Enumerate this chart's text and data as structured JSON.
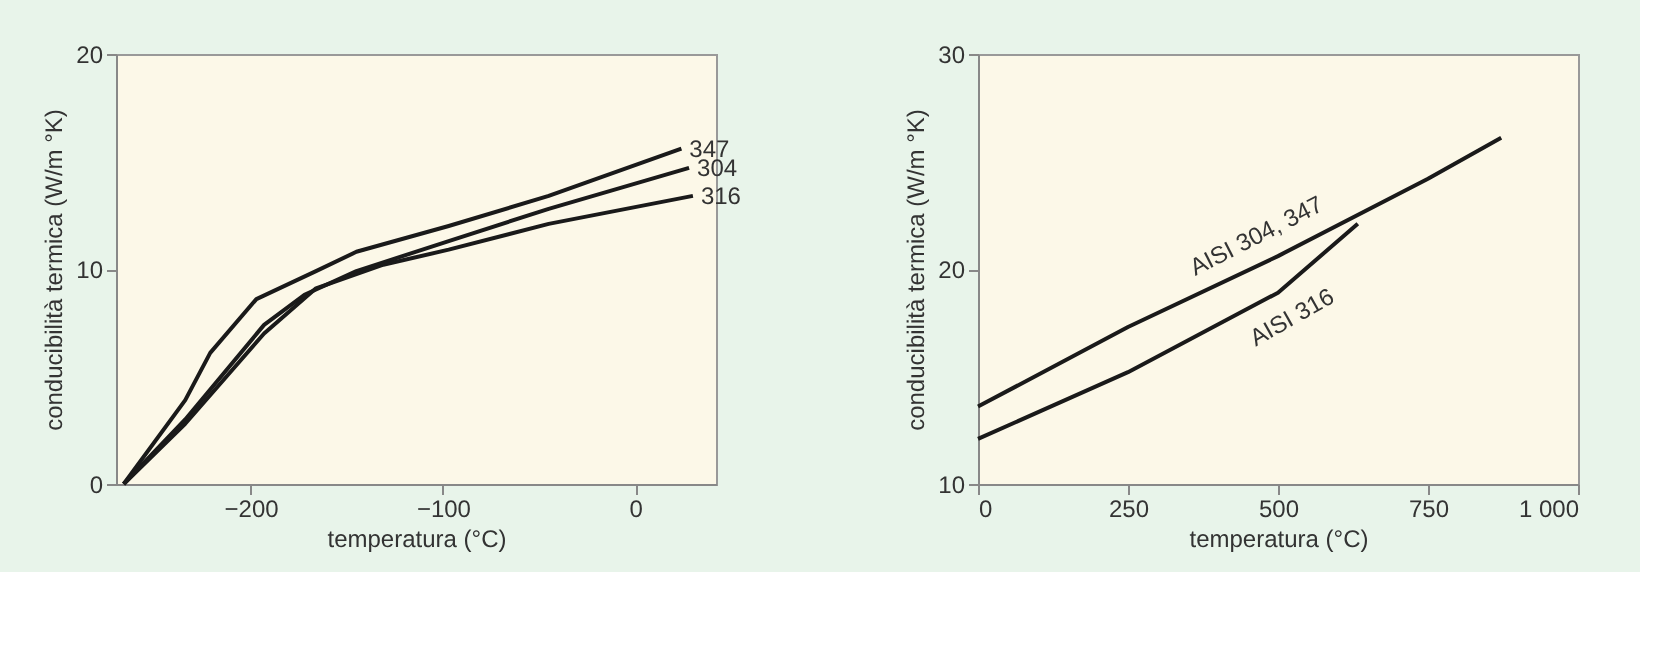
{
  "chart_data": [
    {
      "type": "line",
      "xlabel": "temperatura (°C)",
      "ylabel": "conducibilità termica (W/m °K)",
      "xlim": [
        -270,
        42
      ],
      "ylim": [
        0,
        20
      ],
      "xticks": [
        -200,
        -100,
        0
      ],
      "yticks": [
        0,
        10,
        20
      ],
      "grid": false,
      "line_style": "solid",
      "marker": "none",
      "series": [
        {
          "name": "347",
          "color": "#1a1a1a",
          "x": [
            -266,
            -234,
            -221,
            -197,
            -166,
            -145,
            -97,
            -45,
            24
          ],
          "values": [
            0,
            3.9,
            6.1,
            8.6,
            9.9,
            10.8,
            12.0,
            13.4,
            15.6
          ]
        },
        {
          "name": "304",
          "color": "#1a1a1a",
          "x": [
            -266,
            -234,
            -193,
            -172,
            -145,
            -97,
            -45,
            28
          ],
          "values": [
            0,
            3.0,
            7.4,
            8.8,
            9.9,
            11.3,
            12.8,
            14.7
          ]
        },
        {
          "name": "316",
          "color": "#1a1a1a",
          "x": [
            -266,
            -234,
            -193,
            -166,
            -131,
            -97,
            -45,
            30
          ],
          "values": [
            0,
            2.8,
            7.0,
            9.1,
            10.2,
            10.9,
            12.1,
            13.4
          ]
        }
      ]
    },
    {
      "type": "line",
      "xlabel": "temperatura (°C)",
      "ylabel": "conducibilità termica (W/m °K)",
      "xlim": [
        0,
        1000
      ],
      "ylim": [
        10,
        30
      ],
      "xticks": [
        0,
        250,
        500,
        750,
        {
          "value": 1000,
          "label": "1 000"
        }
      ],
      "yticks": [
        10,
        20,
        30
      ],
      "grid": false,
      "line_style": "solid",
      "marker": "none",
      "series": [
        {
          "name": "AISI 304, 347",
          "color": "#1a1a1a",
          "x": [
            0,
            250,
            500,
            750,
            872
          ],
          "values": [
            13.6,
            17.3,
            20.6,
            24.2,
            26.1
          ]
        },
        {
          "name": "AISI 316",
          "color": "#1a1a1a",
          "x": [
            0,
            250,
            500,
            633
          ],
          "values": [
            12.1,
            15.2,
            18.9,
            22.1
          ]
        }
      ]
    }
  ]
}
